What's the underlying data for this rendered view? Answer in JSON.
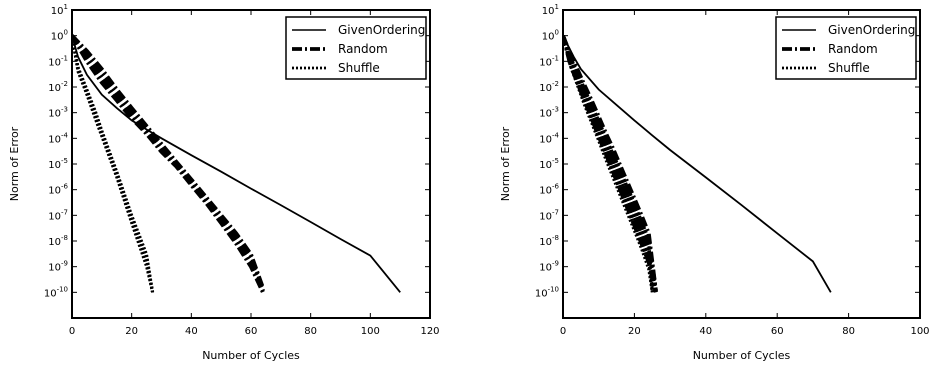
{
  "chart_data": [
    {
      "type": "line",
      "title": "",
      "xlabel": "Number of Cycles",
      "ylabel": "Norm of Error",
      "xlim": [
        0,
        120
      ],
      "ylim": [
        1e-11,
        10
      ],
      "yscale": "log",
      "x_ticks": [
        "0",
        "20",
        "40",
        "60",
        "80",
        "100",
        "120"
      ],
      "y_tick_exponents": [
        "1",
        "0",
        "-1",
        "-2",
        "-3",
        "-4",
        "-5",
        "-6",
        "-7",
        "-8",
        "-9",
        "-10"
      ],
      "legend_position": "top-right",
      "legend": [
        "GivenOrdering",
        "Random",
        "Shuffle"
      ],
      "series": [
        {
          "name": "GivenOrdering",
          "style": "solid",
          "x": [
            0,
            2,
            5,
            10,
            15,
            20,
            25,
            30,
            40,
            50,
            60,
            70,
            80,
            90,
            100,
            110
          ],
          "y": [
            1,
            0.15,
            0.03,
            0.005,
            0.0015,
            0.0005,
            0.00022,
            0.0001,
            2.2e-05,
            5e-06,
            1.1e-06,
            2.5e-07,
            5.5e-08,
            1.2e-08,
            2.7e-09,
            1e-10
          ]
        },
        {
          "name": "Random",
          "style": "dash-dot",
          "band": true,
          "x": [
            0,
            5,
            10,
            15,
            20,
            25,
            30,
            35,
            40,
            45,
            50,
            55,
            60,
            64
          ],
          "y_low": [
            1,
            0.1,
            0.015,
            0.003,
            0.0006,
            0.00015,
            3e-05,
            8e-06,
            1.5e-06,
            3e-07,
            5e-08,
            8e-09,
            1e-09,
            1e-10
          ],
          "y_high": [
            1,
            0.25,
            0.05,
            0.008,
            0.0015,
            0.0003,
            6e-05,
            1.2e-05,
            2.5e-06,
            5e-07,
            1e-07,
            2e-08,
            3e-09,
            1.5e-10
          ]
        },
        {
          "name": "Shuffle",
          "style": "dotted",
          "band": true,
          "x": [
            0,
            2,
            5,
            8,
            10,
            15,
            20,
            25,
            27
          ],
          "y_low": [
            1,
            0.04,
            0.005,
            0.0005,
            0.00012,
            3e-06,
            5e-08,
            1e-09,
            1e-10
          ],
          "y_high": [
            1,
            0.06,
            0.008,
            0.001,
            0.0002,
            5e-06,
            1e-07,
            3e-09,
            1e-10
          ]
        }
      ]
    },
    {
      "type": "line",
      "title": "",
      "xlabel": "Number of Cycles",
      "ylabel": "Norm of Error",
      "xlim": [
        0,
        100
      ],
      "ylim": [
        1e-11,
        10
      ],
      "yscale": "log",
      "x_ticks": [
        "0",
        "20",
        "40",
        "60",
        "80",
        "100"
      ],
      "y_tick_exponents": [
        "1",
        "0",
        "-1",
        "-2",
        "-3",
        "-4",
        "-5",
        "-6",
        "-7",
        "-8",
        "-9",
        "-10"
      ],
      "legend_position": "top-right",
      "legend": [
        "GivenOrdering",
        "Random",
        "Shuffle"
      ],
      "series": [
        {
          "name": "GivenOrdering",
          "style": "solid",
          "x": [
            0,
            3,
            5,
            10,
            15,
            20,
            25,
            30,
            40,
            50,
            60,
            70,
            75
          ],
          "y": [
            1,
            0.15,
            0.05,
            0.008,
            0.002,
            0.0005,
            0.00013,
            3.5e-05,
            3e-06,
            2.5e-07,
            2e-08,
            1.6e-09,
            1e-10
          ]
        },
        {
          "name": "Random",
          "style": "dash-dot",
          "band": true,
          "x": [
            0,
            2,
            4,
            6,
            8,
            10,
            12,
            14,
            16,
            18,
            20,
            22,
            24,
            26
          ],
          "y_low": [
            1,
            0.08,
            0.015,
            0.003,
            0.0006,
            0.00012,
            2.5e-05,
            5e-06,
            1e-06,
            2e-07,
            4e-08,
            8e-09,
            1.5e-09,
            1e-10
          ],
          "y_high": [
            1,
            0.2,
            0.05,
            0.012,
            0.003,
            0.0007,
            0.00016,
            4e-05,
            9e-06,
            2e-06,
            4.5e-07,
            1e-07,
            2e-08,
            1.2e-10
          ]
        },
        {
          "name": "Shuffle",
          "style": "dotted",
          "band": true,
          "x": [
            0,
            2,
            4,
            6,
            8,
            10,
            12,
            14,
            16,
            18,
            20,
            22,
            24,
            25
          ],
          "y_low": [
            1,
            0.07,
            0.012,
            0.002,
            0.0004,
            8e-05,
            1.5e-05,
            3e-06,
            6e-07,
            1.2e-07,
            2.5e-08,
            5e-09,
            8e-10,
            1e-10
          ],
          "y_high": [
            1,
            0.15,
            0.04,
            0.009,
            0.002,
            0.0005,
            0.00011,
            2.5e-05,
            6e-06,
            1.3e-06,
            3e-07,
            6e-08,
            1.2e-08,
            1.1e-10
          ]
        }
      ]
    }
  ]
}
